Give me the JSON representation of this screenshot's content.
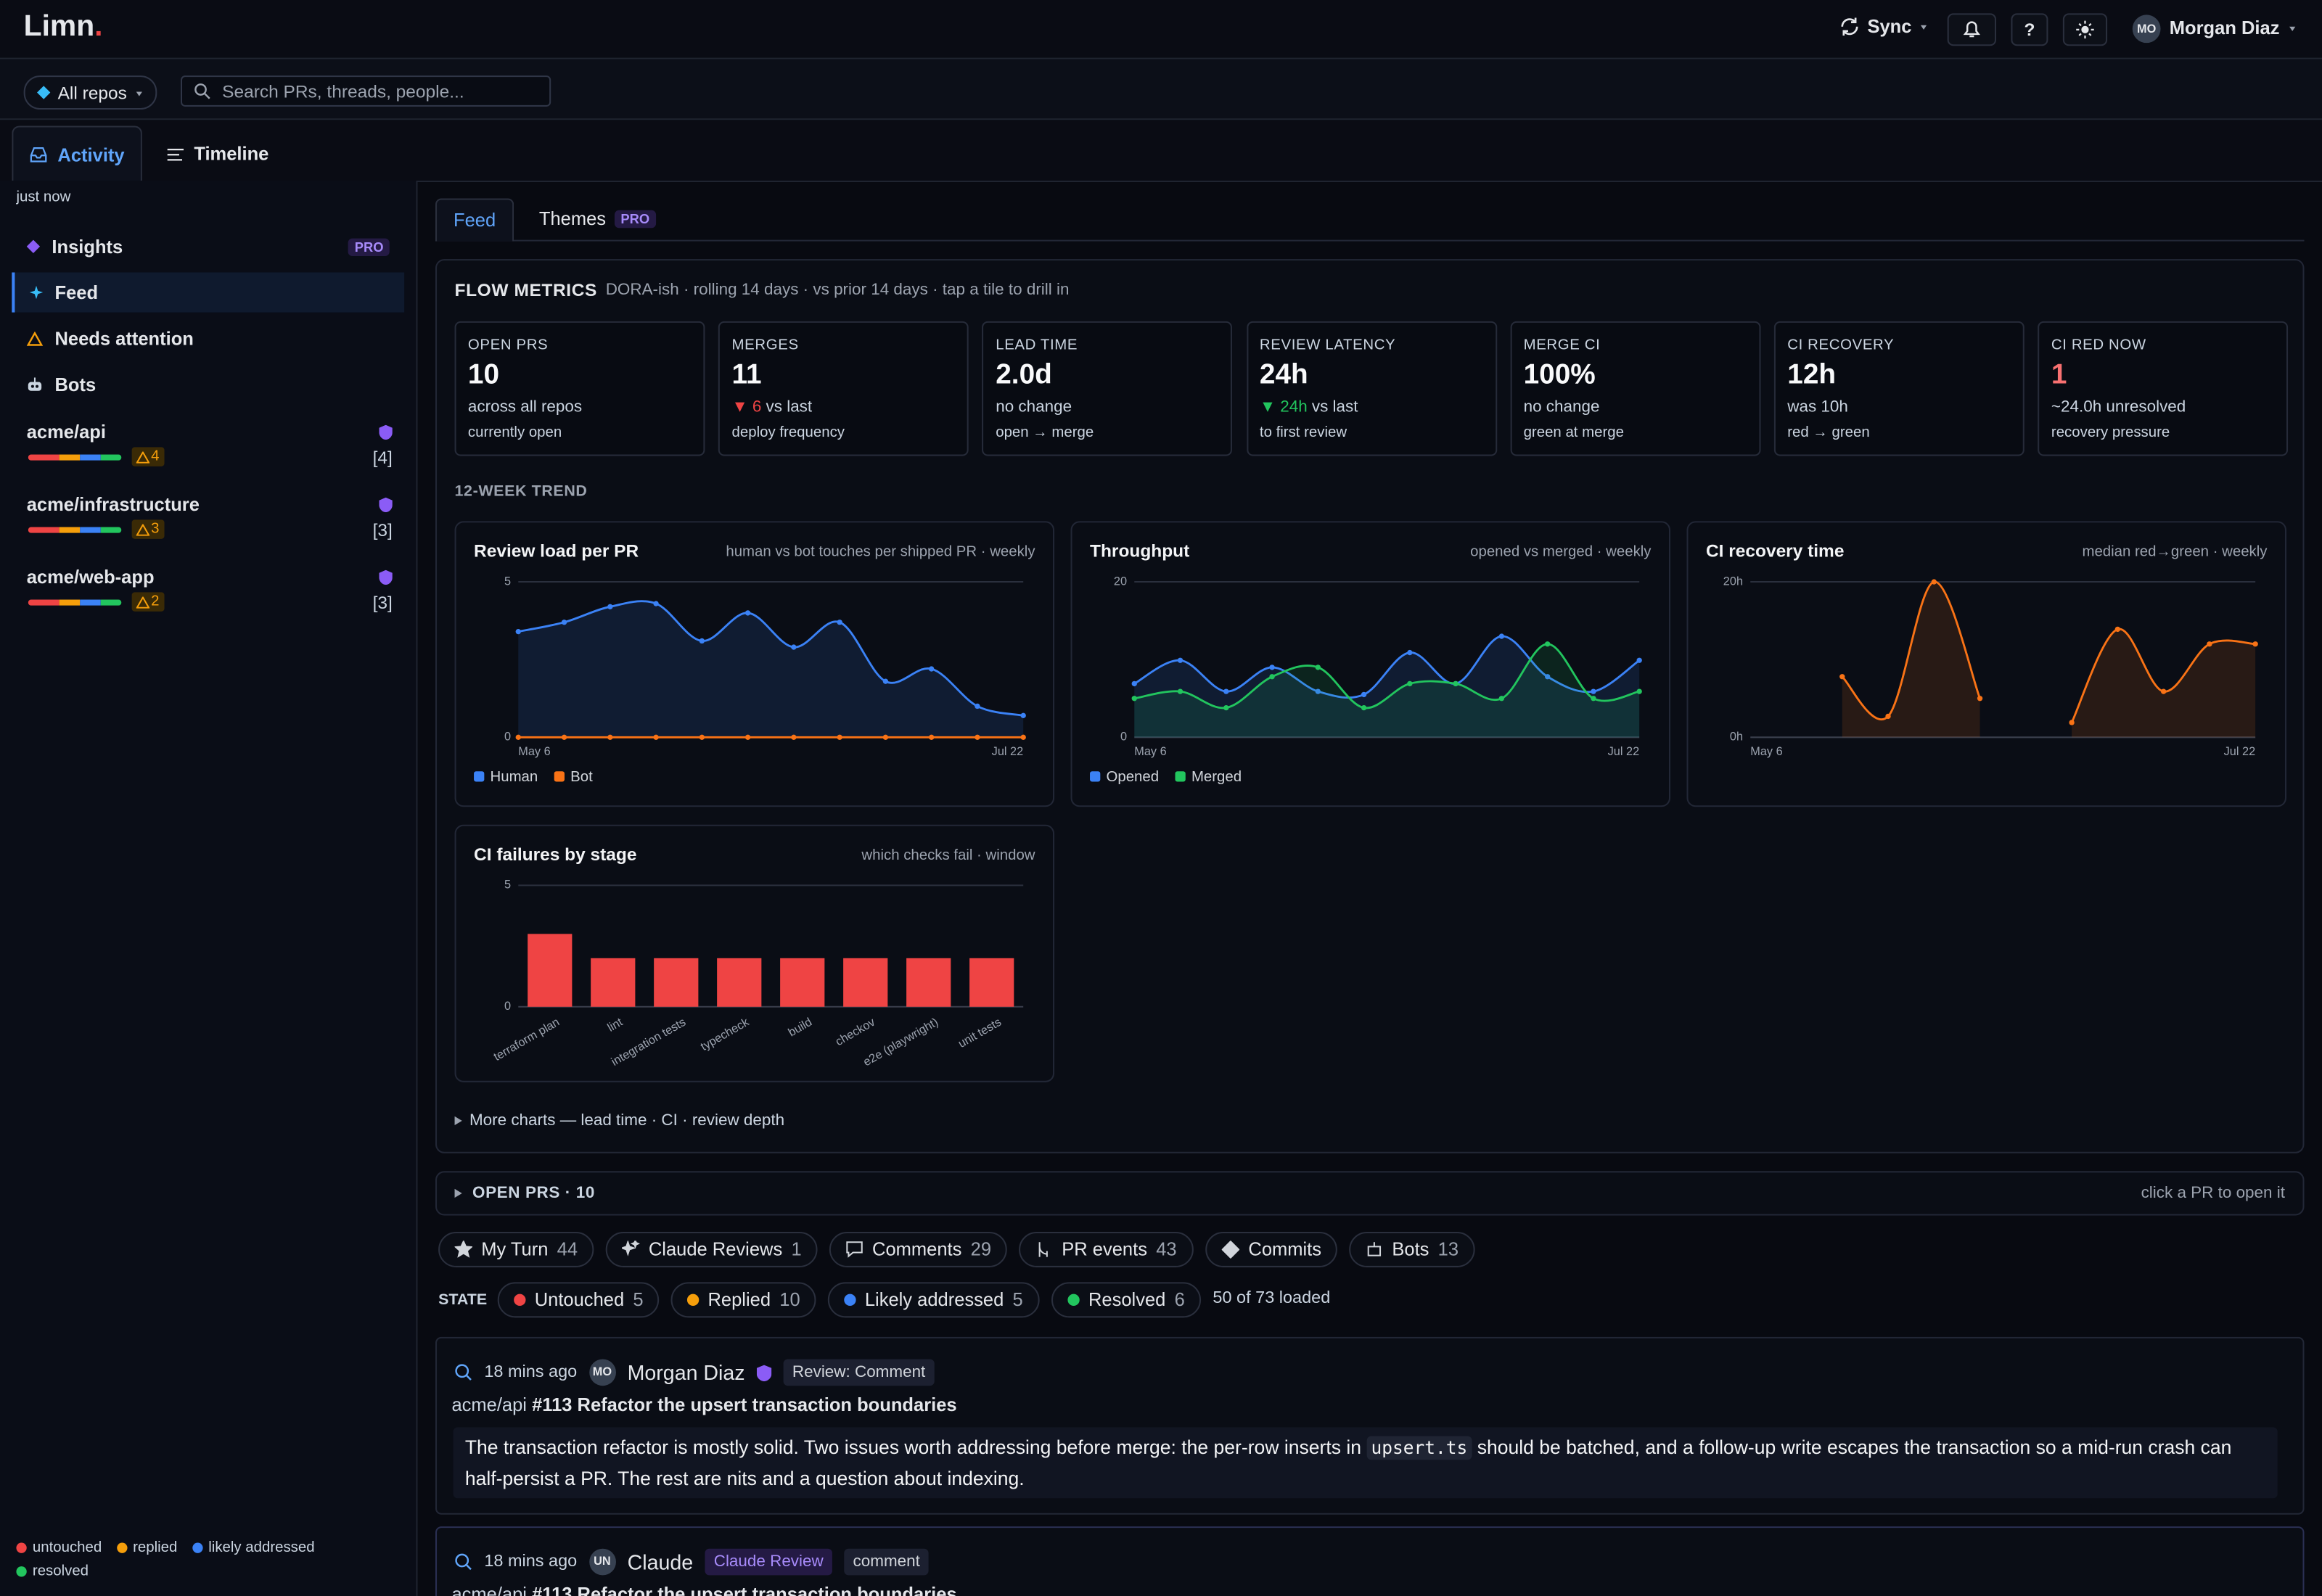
{
  "header": {
    "brand": "Limn",
    "brand_mark": ".",
    "sync": "Sync",
    "help": "?",
    "user_initials": "MO",
    "user_name": "Morgan Diaz"
  },
  "filter_bar": {
    "repo_filter": "All repos",
    "search_placeholder": "Search PRs, threads, people..."
  },
  "view_tabs": [
    "Activity",
    "Timeline"
  ],
  "sidebar": {
    "updated": "just now",
    "nav": [
      {
        "label": "Insights",
        "badge": "PRO"
      },
      {
        "label": "Feed"
      },
      {
        "label": "Needs attention"
      },
      {
        "label": "Bots"
      }
    ],
    "repos": [
      {
        "name": "acme/api",
        "warnings": 4,
        "count": "[4]"
      },
      {
        "name": "acme/infrastructure",
        "warnings": 3,
        "count": "[3]"
      },
      {
        "name": "acme/web-app",
        "warnings": 2,
        "count": "[3]"
      }
    ],
    "legend": [
      {
        "label": "untouched",
        "color": "#ef4444"
      },
      {
        "label": "replied",
        "color": "#f59e0b"
      },
      {
        "label": "likely addressed",
        "color": "#3b82f6"
      },
      {
        "label": "resolved",
        "color": "#22c55e"
      }
    ]
  },
  "content_tabs": [
    {
      "label": "Feed"
    },
    {
      "label": "Themes",
      "badge": "PRO"
    }
  ],
  "flow_metrics": {
    "title": "FLOW METRICS",
    "subtitle": "DORA-ish · rolling 14 days · vs prior 14 days · tap a tile to drill in",
    "tiles": [
      {
        "label": "OPEN PRS",
        "value": "10",
        "delta": "across all repos",
        "note": "currently open"
      },
      {
        "label": "MERGES",
        "value": "11",
        "arrow": "▼",
        "delta_value": "6",
        "delta": "vs last",
        "trend_color": "#ef4444",
        "note": "deploy frequency"
      },
      {
        "label": "LEAD TIME",
        "value": "2.0d",
        "delta": "no change",
        "note": "open → merge"
      },
      {
        "label": "REVIEW LATENCY",
        "value": "24h",
        "arrow": "▼",
        "delta_value": "24h",
        "delta": "vs last",
        "trend_color": "#22c55e",
        "note": "to first review"
      },
      {
        "label": "MERGE CI",
        "value": "100%",
        "delta": "no change",
        "note": "green at merge"
      },
      {
        "label": "CI RECOVERY",
        "value": "12h",
        "delta": "was 10h",
        "note": "red → green"
      },
      {
        "label": "CI RED NOW",
        "value": "1",
        "value_color": "#f87171",
        "delta": "~24.0h unresolved",
        "note": "recovery pressure"
      }
    ]
  },
  "trend_title": "12-WEEK TREND",
  "more_charts": "More charts — lead time · CI · review depth",
  "chart_data": [
    {
      "type": "line",
      "area": true,
      "legend": true,
      "grid": true,
      "title": "Review load per PR",
      "subtitle": "human vs bot touches per shipped PR · weekly",
      "categories": [
        "May 6",
        null,
        null,
        null,
        null,
        null,
        null,
        null,
        null,
        null,
        null,
        "Jul 22"
      ],
      "series": [
        {
          "name": "Human",
          "color": "#3b82f6",
          "values": [
            3.4,
            3.7,
            4.2,
            4.3,
            3.1,
            4.0,
            2.9,
            3.7,
            1.8,
            2.2,
            1.0,
            0.7
          ]
        },
        {
          "name": "Bot",
          "color": "#f97316",
          "values": [
            0,
            0,
            0,
            0,
            0,
            0,
            0,
            0,
            0,
            0,
            0,
            0
          ]
        }
      ],
      "ylim": [
        0,
        5
      ],
      "yticks": [
        0,
        5
      ]
    },
    {
      "type": "line",
      "area": true,
      "legend": true,
      "grid": true,
      "title": "Throughput",
      "subtitle": "opened vs merged · weekly",
      "categories": [
        "May 6",
        null,
        null,
        null,
        null,
        null,
        null,
        null,
        null,
        null,
        null,
        "Jul 22"
      ],
      "series": [
        {
          "name": "Opened",
          "color": "#3b82f6",
          "values": [
            6.9,
            9.9,
            5.9,
            9.0,
            5.9,
            5.5,
            10.9,
            6.9,
            13.0,
            7.8,
            5.9,
            9.9
          ]
        },
        {
          "name": "Merged",
          "color": "#22c55e",
          "values": [
            5.0,
            5.9,
            3.8,
            7.8,
            9.0,
            3.8,
            6.9,
            6.9,
            5.0,
            12.0,
            5.0,
            5.9
          ]
        }
      ],
      "ylim": [
        0,
        20
      ],
      "yticks": [
        0,
        20
      ]
    },
    {
      "type": "line",
      "area": true,
      "legend": false,
      "grid": true,
      "title": "CI recovery time",
      "subtitle": "median red→green · weekly",
      "categories": [
        "May 6",
        null,
        null,
        null,
        null,
        null,
        null,
        null,
        null,
        null,
        null,
        "Jul 22"
      ],
      "series": [
        {
          "color": "#f97316",
          "values": [
            null,
            null,
            7.8,
            2.7,
            20,
            5.0,
            null,
            1.9,
            13.9,
            5.9,
            12.0,
            12.0
          ]
        }
      ],
      "ylim": [
        0,
        20
      ],
      "yticks": [
        {
          "value": 0,
          "label": "0h"
        },
        {
          "value": 20,
          "label": "20h"
        }
      ]
    },
    {
      "type": "bar",
      "grid": true,
      "title": "CI failures by stage",
      "subtitle": "which checks fail · window",
      "color": "#ef4444",
      "categories": [
        "terraform plan",
        "lint",
        "integration tests",
        "typecheck",
        "build",
        "checkov",
        "e2e (playwright)",
        "unit tests"
      ],
      "values": [
        3,
        2,
        2,
        2,
        2,
        2,
        2,
        2
      ],
      "ylim": [
        0,
        5
      ],
      "yticks": [
        0,
        5
      ]
    }
  ],
  "open_prs": {
    "label": "OPEN PRS · 10",
    "hint": "click a PR to open it"
  },
  "filters": [
    {
      "label": "My Turn",
      "count": 44
    },
    {
      "label": "Claude Reviews",
      "count": 1
    },
    {
      "label": "Comments",
      "count": 29
    },
    {
      "label": "PR events",
      "count": 43
    },
    {
      "label": "Commits"
    },
    {
      "label": "Bots",
      "count": 13
    }
  ],
  "state": {
    "label": "STATE",
    "options": [
      {
        "label": "Untouched",
        "count": 5,
        "color": "#ef4444"
      },
      {
        "label": "Replied",
        "count": 10,
        "color": "#f59e0b"
      },
      {
        "label": "Likely addressed",
        "count": 5,
        "color": "#3b82f6"
      },
      {
        "label": "Resolved",
        "count": 6,
        "color": "#22c55e"
      }
    ],
    "loaded": "50 of 73 loaded"
  },
  "feed": [
    {
      "time": "18 mins ago",
      "initials": "MO",
      "author": "Morgan Diaz",
      "tag": "Review: Comment",
      "repo": "acme/api",
      "pr": "#113 Refactor the upsert transaction boundaries",
      "body": [
        "The transaction refactor is mostly solid. Two issues worth addressing before merge: the per-row inserts in ",
        "upsert.ts",
        " should be batched, and a follow-up write escapes the transaction so a mid-run crash can half-persist a PR. The rest are nits and a question about indexing."
      ]
    },
    {
      "time": "18 mins ago",
      "initials": "UN",
      "author": "Claude",
      "tag": "Claude Review",
      "tag2": "comment",
      "repo": "acme/api",
      "pr": "#113 Refactor the upsert transaction boundaries"
    }
  ]
}
